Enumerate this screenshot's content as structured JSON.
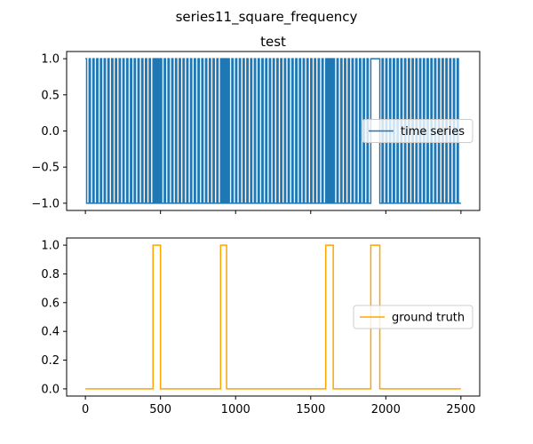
{
  "figure": {
    "suptitle": "series11_square_frequency"
  },
  "chart_data": [
    {
      "type": "line",
      "title": "test",
      "xlabel": "",
      "ylabel": "",
      "xlim": [
        -125,
        2625
      ],
      "ylim": [
        -1.1,
        1.1
      ],
      "xticks": [
        0,
        500,
        1000,
        1500,
        2000,
        2500
      ],
      "show_xtick_labels": false,
      "yticks": [
        -1.0,
        -0.5,
        0.0,
        0.5,
        1.0
      ],
      "ytick_labels": [
        "−1.0",
        "−0.5",
        "0.0",
        "0.5",
        "1.0"
      ],
      "grid": false,
      "legend": {
        "placement": "center-right",
        "entries": [
          "time series"
        ]
      },
      "series": [
        {
          "name": "time series",
          "color": "#1f77b4",
          "kind": "square_wave",
          "x_start": 0,
          "x_end": 2500,
          "low": -1,
          "high": 1,
          "transitions": [
            [
              0,
              1
            ],
            [
              8,
              -1
            ],
            [
              25,
              1
            ],
            [
              33,
              -1
            ],
            [
              50,
              1
            ],
            [
              58,
              -1
            ],
            [
              75,
              1
            ],
            [
              83,
              -1
            ],
            [
              100,
              1
            ],
            [
              108,
              -1
            ],
            [
              125,
              1
            ],
            [
              133,
              -1
            ],
            [
              150,
              1
            ],
            [
              158,
              -1
            ],
            [
              175,
              1
            ],
            [
              183,
              -1
            ],
            [
              200,
              1
            ],
            [
              208,
              -1
            ],
            [
              225,
              1
            ],
            [
              233,
              -1
            ],
            [
              250,
              1
            ],
            [
              258,
              -1
            ],
            [
              275,
              1
            ],
            [
              283,
              -1
            ],
            [
              300,
              1
            ],
            [
              308,
              -1
            ],
            [
              325,
              1
            ],
            [
              333,
              -1
            ],
            [
              350,
              1
            ],
            [
              358,
              -1
            ],
            [
              375,
              1
            ],
            [
              383,
              -1
            ],
            [
              400,
              1
            ],
            [
              408,
              -1
            ],
            [
              425,
              1
            ],
            [
              433,
              -1
            ],
            [
              450,
              1
            ],
            [
              455,
              -1
            ],
            [
              462,
              1
            ],
            [
              467,
              -1
            ],
            [
              474,
              1
            ],
            [
              479,
              -1
            ],
            [
              486,
              1
            ],
            [
              491,
              -1
            ],
            [
              500,
              1
            ],
            [
              508,
              -1
            ],
            [
              525,
              1
            ],
            [
              533,
              -1
            ],
            [
              550,
              1
            ],
            [
              558,
              -1
            ],
            [
              575,
              1
            ],
            [
              583,
              -1
            ],
            [
              600,
              1
            ],
            [
              608,
              -1
            ],
            [
              625,
              1
            ],
            [
              633,
              -1
            ],
            [
              650,
              1
            ],
            [
              658,
              -1
            ],
            [
              675,
              1
            ],
            [
              683,
              -1
            ],
            [
              700,
              1
            ],
            [
              708,
              -1
            ],
            [
              725,
              1
            ],
            [
              733,
              -1
            ],
            [
              750,
              1
            ],
            [
              758,
              -1
            ],
            [
              775,
              1
            ],
            [
              783,
              -1
            ],
            [
              800,
              1
            ],
            [
              808,
              -1
            ],
            [
              825,
              1
            ],
            [
              833,
              -1
            ],
            [
              850,
              1
            ],
            [
              858,
              -1
            ],
            [
              875,
              1
            ],
            [
              883,
              -1
            ],
            [
              900,
              1
            ],
            [
              906,
              -1
            ],
            [
              912,
              1
            ],
            [
              918,
              -1
            ],
            [
              924,
              1
            ],
            [
              930,
              -1
            ],
            [
              936,
              1
            ],
            [
              942,
              -1
            ],
            [
              950,
              1
            ],
            [
              958,
              -1
            ],
            [
              975,
              1
            ],
            [
              983,
              -1
            ],
            [
              1000,
              1
            ],
            [
              1008,
              -1
            ],
            [
              1025,
              1
            ],
            [
              1033,
              -1
            ],
            [
              1050,
              1
            ],
            [
              1058,
              -1
            ],
            [
              1075,
              1
            ],
            [
              1083,
              -1
            ],
            [
              1100,
              1
            ],
            [
              1108,
              -1
            ],
            [
              1125,
              1
            ],
            [
              1133,
              -1
            ],
            [
              1150,
              1
            ],
            [
              1158,
              -1
            ],
            [
              1175,
              1
            ],
            [
              1183,
              -1
            ],
            [
              1200,
              1
            ],
            [
              1208,
              -1
            ],
            [
              1225,
              1
            ],
            [
              1233,
              -1
            ],
            [
              1250,
              1
            ],
            [
              1258,
              -1
            ],
            [
              1275,
              1
            ],
            [
              1283,
              -1
            ],
            [
              1300,
              1
            ],
            [
              1308,
              -1
            ],
            [
              1325,
              1
            ],
            [
              1333,
              -1
            ],
            [
              1350,
              1
            ],
            [
              1358,
              -1
            ],
            [
              1375,
              1
            ],
            [
              1383,
              -1
            ],
            [
              1400,
              1
            ],
            [
              1408,
              -1
            ],
            [
              1425,
              1
            ],
            [
              1433,
              -1
            ],
            [
              1450,
              1
            ],
            [
              1458,
              -1
            ],
            [
              1475,
              1
            ],
            [
              1483,
              -1
            ],
            [
              1500,
              1
            ],
            [
              1508,
              -1
            ],
            [
              1525,
              1
            ],
            [
              1533,
              -1
            ],
            [
              1550,
              1
            ],
            [
              1558,
              -1
            ],
            [
              1575,
              1
            ],
            [
              1583,
              -1
            ],
            [
              1600,
              1
            ],
            [
              1603,
              -1
            ],
            [
              1606,
              1
            ],
            [
              1609,
              -1
            ],
            [
              1612,
              1
            ],
            [
              1615,
              -1
            ],
            [
              1618,
              1
            ],
            [
              1621,
              -1
            ],
            [
              1624,
              1
            ],
            [
              1627,
              -1
            ],
            [
              1630,
              1
            ],
            [
              1633,
              -1
            ],
            [
              1636,
              1
            ],
            [
              1639,
              -1
            ],
            [
              1642,
              1
            ],
            [
              1645,
              -1
            ],
            [
              1650,
              1
            ],
            [
              1658,
              -1
            ],
            [
              1675,
              1
            ],
            [
              1683,
              -1
            ],
            [
              1700,
              1
            ],
            [
              1708,
              -1
            ],
            [
              1725,
              1
            ],
            [
              1733,
              -1
            ],
            [
              1750,
              1
            ],
            [
              1758,
              -1
            ],
            [
              1775,
              1
            ],
            [
              1783,
              -1
            ],
            [
              1800,
              1
            ],
            [
              1808,
              -1
            ],
            [
              1825,
              1
            ],
            [
              1833,
              -1
            ],
            [
              1850,
              1
            ],
            [
              1858,
              -1
            ],
            [
              1875,
              1
            ],
            [
              1883,
              -1
            ],
            [
              1900,
              1
            ],
            [
              1960,
              -1
            ],
            [
              1975,
              1
            ],
            [
              1983,
              -1
            ],
            [
              2000,
              1
            ],
            [
              2008,
              -1
            ],
            [
              2025,
              1
            ],
            [
              2033,
              -1
            ],
            [
              2050,
              1
            ],
            [
              2058,
              -1
            ],
            [
              2075,
              1
            ],
            [
              2083,
              -1
            ],
            [
              2100,
              1
            ],
            [
              2108,
              -1
            ],
            [
              2125,
              1
            ],
            [
              2133,
              -1
            ],
            [
              2150,
              1
            ],
            [
              2158,
              -1
            ],
            [
              2175,
              1
            ],
            [
              2183,
              -1
            ],
            [
              2200,
              1
            ],
            [
              2208,
              -1
            ],
            [
              2225,
              1
            ],
            [
              2233,
              -1
            ],
            [
              2250,
              1
            ],
            [
              2258,
              -1
            ],
            [
              2275,
              1
            ],
            [
              2283,
              -1
            ],
            [
              2300,
              1
            ],
            [
              2308,
              -1
            ],
            [
              2325,
              1
            ],
            [
              2333,
              -1
            ],
            [
              2350,
              1
            ],
            [
              2358,
              -1
            ],
            [
              2375,
              1
            ],
            [
              2383,
              -1
            ],
            [
              2400,
              1
            ],
            [
              2408,
              -1
            ],
            [
              2425,
              1
            ],
            [
              2433,
              -1
            ],
            [
              2450,
              1
            ],
            [
              2458,
              -1
            ],
            [
              2475,
              1
            ],
            [
              2483,
              -1
            ]
          ]
        }
      ]
    },
    {
      "type": "line",
      "title": "",
      "xlabel": "",
      "ylabel": "",
      "xlim": [
        -125,
        2625
      ],
      "ylim": [
        -0.05,
        1.05
      ],
      "xticks": [
        0,
        500,
        1000,
        1500,
        2000,
        2500
      ],
      "xtick_labels": [
        "0",
        "500",
        "1000",
        "1500",
        "2000",
        "2500"
      ],
      "show_xtick_labels": true,
      "yticks": [
        0.0,
        0.2,
        0.4,
        0.6,
        0.8,
        1.0
      ],
      "ytick_labels": [
        "0.0",
        "0.2",
        "0.4",
        "0.6",
        "0.8",
        "1.0"
      ],
      "grid": false,
      "legend": {
        "placement": "center-right",
        "entries": [
          "ground truth"
        ]
      },
      "series": [
        {
          "name": "ground truth",
          "color": "#ffa500",
          "kind": "step",
          "x_start": 0,
          "x_end": 2500,
          "steps": [
            [
              0,
              0
            ],
            [
              450,
              1
            ],
            [
              500,
              0
            ],
            [
              900,
              1
            ],
            [
              940,
              0
            ],
            [
              1600,
              1
            ],
            [
              1650,
              0
            ],
            [
              1900,
              1
            ],
            [
              1960,
              0
            ]
          ]
        }
      ]
    }
  ]
}
